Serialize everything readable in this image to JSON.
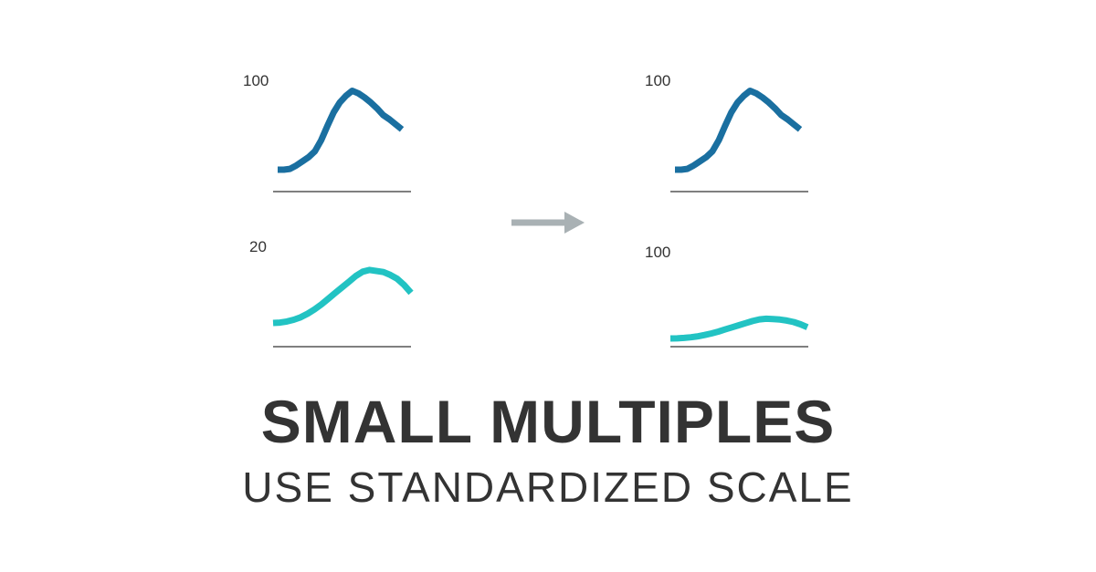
{
  "title": "SMALL MULTIPLES",
  "subtitle": "USE STANDARDIZED SCALE",
  "colors": {
    "series_a": "#1a6fa0",
    "series_b": "#22c3c3",
    "axis": "#333333",
    "arrow": "#a9b1b4",
    "text": "#333333"
  },
  "chart_data": [
    {
      "type": "line",
      "panel": "before-top",
      "y_max_label": "100",
      "ylim": [
        0,
        100
      ],
      "series": [
        {
          "color": "#1a6fa0",
          "x": [
            0,
            5,
            10,
            15,
            20,
            25,
            30,
            35,
            40,
            45,
            50,
            55,
            60,
            65,
            70,
            75,
            80,
            85,
            90,
            95,
            100
          ],
          "values": [
            0,
            0,
            1,
            5,
            10,
            15,
            22,
            35,
            52,
            68,
            80,
            88,
            94,
            91,
            86,
            80,
            73,
            65,
            60,
            54,
            48
          ]
        }
      ]
    },
    {
      "type": "line",
      "panel": "before-bottom",
      "y_max_label": "20",
      "ylim": [
        0,
        20
      ],
      "series": [
        {
          "color": "#22c3c3",
          "x": [
            0,
            5,
            10,
            15,
            20,
            25,
            30,
            35,
            40,
            45,
            50,
            55,
            60,
            65,
            70,
            75,
            80,
            85,
            90,
            95,
            100
          ],
          "values": [
            0,
            0.1,
            0.4,
            0.9,
            1.6,
            2.6,
            3.8,
            5.2,
            6.8,
            8.4,
            10,
            11.6,
            13.2,
            14.4,
            14.9,
            14.6,
            14.3,
            13.5,
            12.4,
            10.7,
            8.5
          ]
        }
      ]
    },
    {
      "type": "line",
      "panel": "after-top",
      "y_max_label": "100",
      "ylim": [
        0,
        100
      ],
      "series": [
        {
          "color": "#1a6fa0",
          "x": [
            0,
            5,
            10,
            15,
            20,
            25,
            30,
            35,
            40,
            45,
            50,
            55,
            60,
            65,
            70,
            75,
            80,
            85,
            90,
            95,
            100
          ],
          "values": [
            0,
            0,
            1,
            5,
            10,
            15,
            22,
            35,
            52,
            68,
            80,
            88,
            94,
            91,
            86,
            80,
            73,
            65,
            60,
            54,
            48
          ]
        }
      ]
    },
    {
      "type": "line",
      "panel": "after-bottom",
      "y_max_label": "100",
      "ylim": [
        0,
        100
      ],
      "series": [
        {
          "color": "#22c3c3",
          "x": [
            0,
            5,
            10,
            15,
            20,
            25,
            30,
            35,
            40,
            45,
            50,
            55,
            60,
            65,
            70,
            75,
            80,
            85,
            90,
            95,
            100
          ],
          "values": [
            0,
            0.1,
            0.4,
            0.9,
            1.6,
            2.6,
            3.8,
            5.2,
            6.8,
            8.4,
            10,
            11.6,
            13.2,
            14.4,
            14.9,
            14.6,
            14.3,
            13.5,
            12.4,
            10.7,
            8.5
          ]
        }
      ]
    }
  ]
}
